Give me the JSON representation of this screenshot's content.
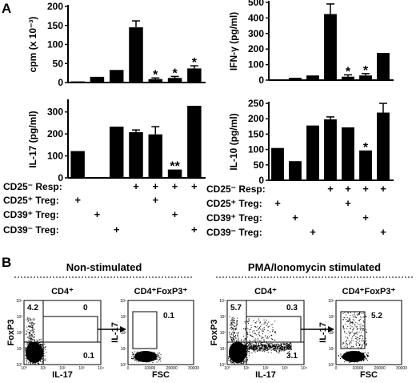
{
  "panel_labels": {
    "a": "A",
    "b": "B"
  },
  "chart_data": [
    {
      "type": "bar",
      "id": "cpm",
      "ylabel": "cpm (x 10⁻³)",
      "ylim": [
        0,
        200
      ],
      "yticks": [
        0,
        50,
        100,
        150,
        200
      ],
      "values": [
        3,
        15,
        33,
        145,
        9,
        12,
        37
      ],
      "errors": [
        0,
        0,
        0,
        17,
        3,
        4,
        7
      ],
      "annotations": [
        "",
        "",
        "",
        "",
        "*",
        "*",
        "*"
      ]
    },
    {
      "type": "bar",
      "id": "ifng",
      "ylabel": "IFN-γ (pg/ml)",
      "ylim": [
        0,
        500
      ],
      "yticks": [
        0,
        100,
        200,
        300,
        400,
        500
      ],
      "values": [
        3,
        15,
        30,
        425,
        22,
        30,
        175
      ],
      "errors": [
        0,
        0,
        0,
        65,
        12,
        12,
        0
      ],
      "annotations": [
        "",
        "",
        "",
        "",
        "*",
        "*",
        ""
      ]
    },
    {
      "type": "bar",
      "id": "il17",
      "ylabel": "IL-17 (pg/ml)",
      "ylim": [
        0,
        350
      ],
      "yticks": [
        0,
        100,
        200,
        300
      ],
      "values": [
        122,
        0,
        233,
        208,
        198,
        38,
        328
      ],
      "errors": [
        0,
        0,
        0,
        10,
        35,
        0,
        0
      ],
      "annotations": [
        "",
        "",
        "",
        "",
        "",
        "**",
        ""
      ]
    },
    {
      "type": "bar",
      "id": "il10",
      "ylabel": "IL-10 (pg/ml)",
      "ylim": [
        0,
        250
      ],
      "yticks": [
        0,
        50,
        100,
        150,
        200,
        250
      ],
      "values": [
        105,
        62,
        178,
        198,
        172,
        97,
        220
      ],
      "errors": [
        0,
        0,
        0,
        8,
        0,
        0,
        30
      ],
      "annotations": [
        "",
        "",
        "",
        "",
        "",
        "*",
        ""
      ]
    }
  ],
  "condition_rows": [
    {
      "label": "CD25⁻ Resp:",
      "marks": [
        false,
        false,
        false,
        true,
        true,
        true,
        true
      ]
    },
    {
      "label": "CD25⁺ Treg:",
      "marks": [
        true,
        false,
        false,
        false,
        true,
        false,
        false
      ]
    },
    {
      "label": "CD39⁺ Treg:",
      "marks": [
        false,
        true,
        false,
        false,
        false,
        true,
        false
      ]
    },
    {
      "label": "CD39⁻ Treg:",
      "marks": [
        false,
        false,
        true,
        false,
        false,
        false,
        true
      ]
    }
  ],
  "condition_mark": "+",
  "flow": {
    "groups": [
      {
        "title": "Non-stimulated"
      },
      {
        "title": "PMA/Ionomycin stimulated"
      }
    ],
    "plots": [
      {
        "gate": "CD4⁺",
        "xlabel": "IL-17",
        "ylabel": "FoxP3",
        "q_ul": "4.2",
        "q_ur": "0",
        "q_lr": "0.1"
      },
      {
        "gate": "CD4⁺FoxP3⁺",
        "xlabel": "FSC",
        "ylabel": "IL-17",
        "value": "0.1"
      },
      {
        "gate": "CD4⁺",
        "xlabel": "IL-17",
        "ylabel": "FoxP3",
        "q_ul": "5.7",
        "q_ur": "0.3",
        "q_lr": "3.1"
      },
      {
        "gate": "CD4⁺FoxP3⁺",
        "xlabel": "FSC",
        "ylabel": "IL-17",
        "value": "5.2"
      }
    ],
    "axis_ticks": {
      "log": [
        "10⁰",
        "10¹",
        "10²",
        "10³",
        "10⁴"
      ],
      "linear": [
        "0",
        "10000",
        "20000",
        "30000"
      ]
    }
  }
}
